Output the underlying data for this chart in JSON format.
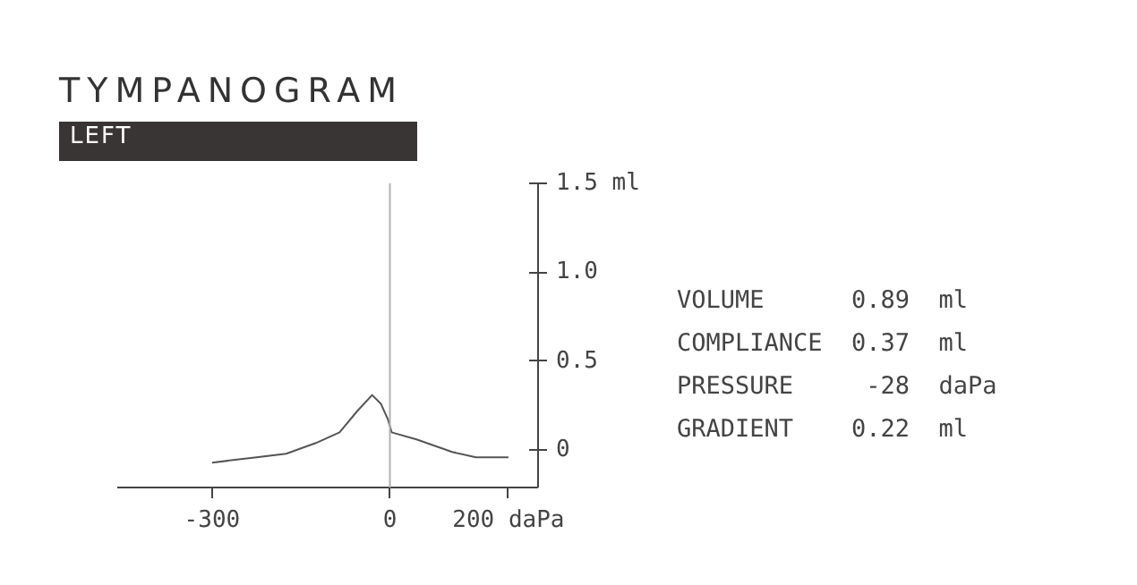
{
  "chart_data": {
    "type": "line",
    "title": "TYMPANOGRAM",
    "subtitle": "LEFT",
    "x": [
      -300,
      -225,
      -175,
      -125,
      -85,
      -55,
      -30,
      -15,
      -3,
      3,
      45,
      105,
      145,
      200
    ],
    "series": [
      {
        "color": "#555555",
        "values": [
          -0.07,
          -0.04,
          -0.02,
          0.04,
          0.1,
          0.22,
          0.31,
          0.26,
          0.17,
          0.1,
          0.06,
          -0.01,
          -0.04,
          -0.04
        ]
      }
    ],
    "xlim": [
      -460,
      250
    ],
    "ylim": [
      -0.21,
      1.5
    ],
    "xticks": [
      -300,
      0,
      {
        "value": 200,
        "label": "200 daPa"
      }
    ],
    "yticks": [
      0,
      0.5,
      {
        "value": 1.0,
        "label": "1.0"
      },
      {
        "value": 1.5,
        "label": "1.5 ml"
      }
    ],
    "ref_lines": [
      {
        "axis": "x",
        "value": 0,
        "color": "#b0b0b0"
      }
    ],
    "line_style": "solid",
    "annotations": [
      "VOLUME      0.89  ml",
      "COMPLIANCE  0.37  ml",
      "PRESSURE     -28  daPa",
      "GRADIENT    0.22  ml"
    ]
  }
}
